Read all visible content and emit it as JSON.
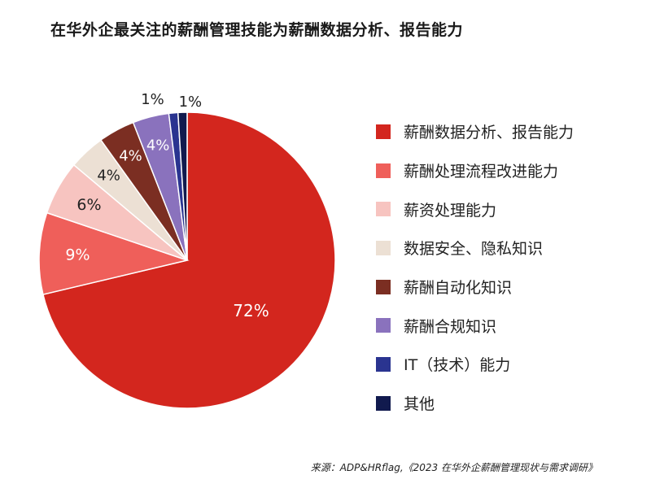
{
  "title": "在华外企最关注的薪酬管理技能为薪酬数据分析、报告能力",
  "source": "来源：ADP&HRflag,《2023 在华外企薪酬管理现状与需求调研》",
  "chart_data": {
    "type": "pie",
    "title": "在华外企最关注的薪酬管理技能为薪酬数据分析、报告能力",
    "legend_position": "right",
    "start_angle": "top",
    "direction": "clockwise",
    "slices": [
      {
        "name": "薪酬数据分析、报告能力",
        "value": 72,
        "label": "72%",
        "color": "#d3261e",
        "label_color": "#ffffff"
      },
      {
        "name": "薪酬处理流程改进能力",
        "value": 9,
        "label": "9%",
        "color": "#ef5f5a",
        "label_color": "#ffffff"
      },
      {
        "name": "薪资处理能力",
        "value": 6,
        "label": "6%",
        "color": "#f7c4c0",
        "label_color": "#222222"
      },
      {
        "name": "数据安全、隐私知识",
        "value": 4,
        "label": "4%",
        "color": "#ece0d4",
        "label_color": "#222222"
      },
      {
        "name": "薪酬自动化知识",
        "value": 4,
        "label": "4%",
        "color": "#7b2e22",
        "label_color": "#ffffff"
      },
      {
        "name": "薪酬合规知识",
        "value": 4,
        "label": "4%",
        "color": "#8a72bd",
        "label_color": "#ffffff"
      },
      {
        "name": "IT（技术）能力",
        "value": 1,
        "label": "1%",
        "color": "#2a3490",
        "label_color": "#222222"
      },
      {
        "name": "其他",
        "value": 1,
        "label": "1%",
        "color": "#111a4e",
        "label_color": "#222222"
      }
    ]
  }
}
